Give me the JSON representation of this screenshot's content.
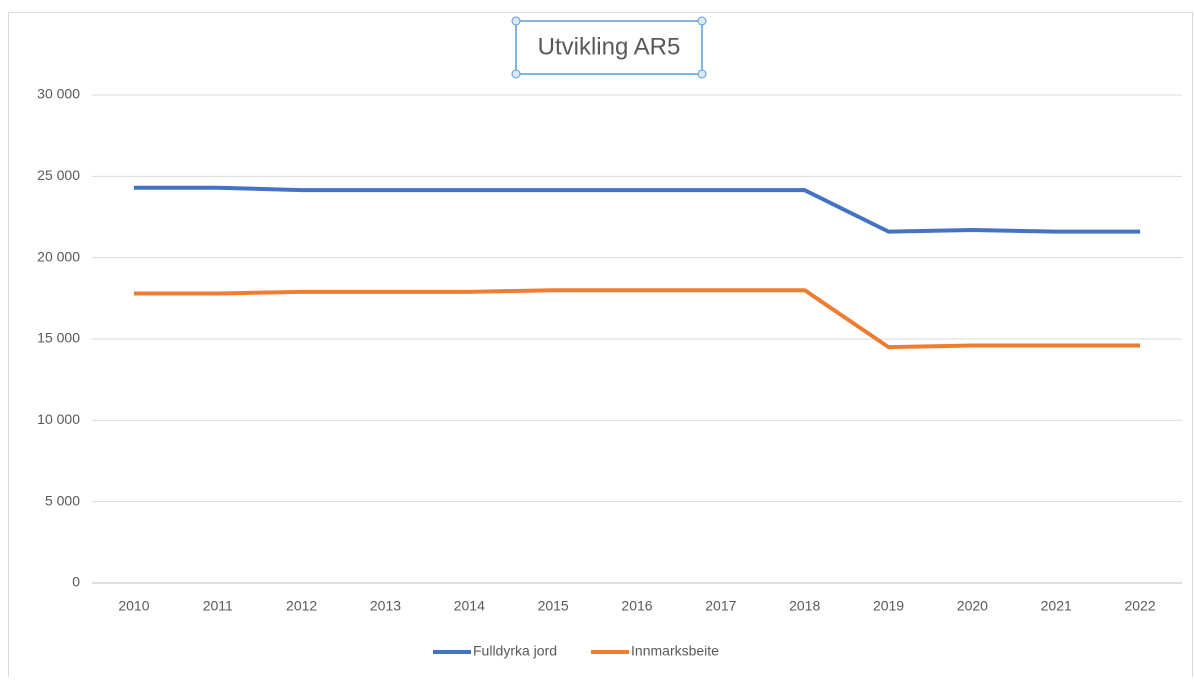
{
  "chart_data": {
    "type": "line",
    "title": "Utvikling AR5",
    "categories": [
      "2010",
      "2011",
      "2012",
      "2013",
      "2014",
      "2015",
      "2016",
      "2017",
      "2018",
      "2019",
      "2020",
      "2021",
      "2022"
    ],
    "series": [
      {
        "name": "Fulldyrka jord",
        "color": "#4472c4",
        "values": [
          24300,
          24300,
          24150,
          24150,
          24150,
          24150,
          24150,
          24150,
          24150,
          21600,
          21700,
          21600,
          21600
        ]
      },
      {
        "name": "Innmarksbeite",
        "color": "#ed7d31",
        "values": [
          17800,
          17800,
          17900,
          17900,
          17900,
          18000,
          18000,
          18000,
          18000,
          14500,
          14600,
          14600,
          14600
        ]
      }
    ],
    "ylim": [
      0,
      30000
    ],
    "yticks": [
      {
        "value": 0,
        "label": "0"
      },
      {
        "value": 5000,
        "label": "5 000"
      },
      {
        "value": 10000,
        "label": "10 000"
      },
      {
        "value": 15000,
        "label": "15 000"
      },
      {
        "value": 20000,
        "label": "20 000"
      },
      {
        "value": 25000,
        "label": "25 000"
      },
      {
        "value": 30000,
        "label": "30 000"
      }
    ],
    "grid": true,
    "legend": "bottom"
  }
}
